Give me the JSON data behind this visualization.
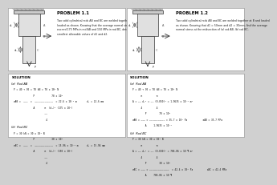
{
  "bg_color": "#d0d0d0",
  "panel_bg": "#ffffff",
  "panel_border": "#aaaaaa",
  "text_color": "#111111",
  "gray_text": "#555555",
  "panels": [
    {
      "title": "PROBLEM 1.1",
      "problem_text": "Two solid cylindrical rods AB and BC are welded together at B and\nloaded as shown. Knowing that the average normal stress must not\nexceed 175 MPa in rod AB and 150 MPa in rod BC, determine the\nsmallest allowable values of d1 and d2.",
      "solution_title": "SOLUTION",
      "sol_a_label": "(a)  Rod AB",
      "sol_a_lines": [
        "P = 40 + 30 = 70 kN = 70 x 10³ N",
        "              P            70 x 10³",
        "σAB =  ———  =  —————————————  = 22.6 x 10⁻³ m       d₁ = 22.6 mm",
        "              A       π  (d₁)² (175 x 10⁶)",
        "                      ——",
        "                       4"
      ],
      "sol_b_label": "(b)  Rod BC",
      "sol_b_lines": [
        "P = 30 kN = 30 x 10³ N",
        "              P            30 x 10³",
        "σBC =  ———  =  —————————————  = 15.96 x 10⁻³ m      d₂ = 15.96 mm",
        "              A       π  (d₂)² (150 x 10⁶)",
        "                      ——",
        "                       4"
      ]
    },
    {
      "title": "PROBLEM 1.2",
      "problem_text": "Two solid cylindrical rods AB and BC are welded together at B and loaded\nas shown. Knowing that d1 = 50mm and d2 = 30mm, find the average\nnormal stress at the midsection of (a) rod AB, (b) rod BC.",
      "solution_title": "SOLUTION",
      "sol_a_label": "(a)  Rod AB",
      "sol_a_lines": [
        "P = 40 + 30 = 70 kN = 70 x 10³ N",
        "      π          π",
        "A = —— d₁² = —— (0.050)² = 1.9635 x 10⁻³ m²",
        "      4          4",
        "         P         70 x 10³",
        "σAB = ——— = ——————————— = 35.7 x 10⁶ Pa           σAB = 35.7 MPa",
        "         A     1.9635 x 10⁻³"
      ],
      "sol_b_label": "(b)  Rod BC",
      "sol_b_lines": [
        "P = 30 kN = 30 x 10³ N",
        "      π          π",
        "A = —— d₂² = —— (0.030)² = 706.86 x 10⁻¶ m²",
        "      4          4",
        "         P         30 x 10³",
        "σBC = ——— = ——————————————  = 42.4 x 10⁶ Pa          σBC = 42.4 MPa",
        "         A     706.86 x 10⁻¶"
      ]
    }
  ]
}
